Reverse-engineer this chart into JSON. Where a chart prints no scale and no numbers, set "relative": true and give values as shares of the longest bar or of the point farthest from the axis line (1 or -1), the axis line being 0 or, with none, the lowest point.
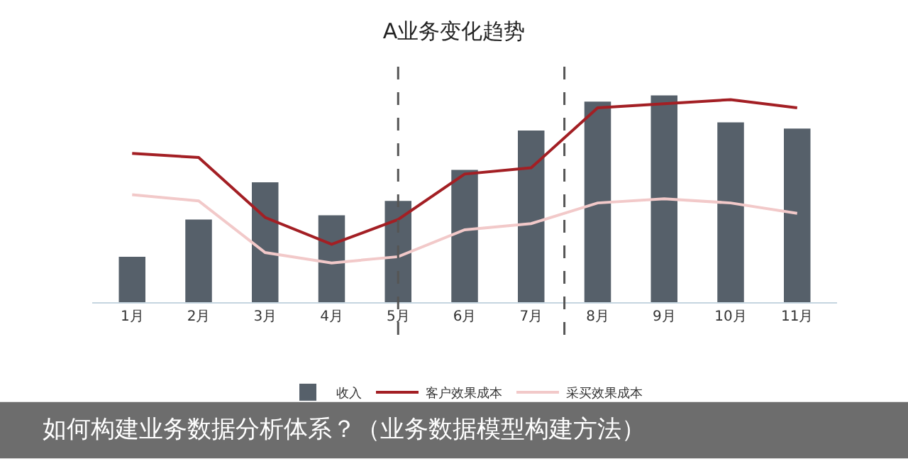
{
  "chart_data": {
    "type": "bar",
    "title": "A业务变化趋势",
    "relative": true,
    "categories": [
      "1月",
      "2月",
      "3月",
      "4月",
      "5月",
      "6月",
      "7月",
      "8月",
      "9月",
      "10月",
      "11月"
    ],
    "series": [
      {
        "name": "收入",
        "color": "#56606a",
        "values": [
          0.22,
          0.4,
          0.58,
          0.42,
          0.49,
          0.64,
          0.83,
          0.97,
          1.0,
          0.87,
          0.84
        ]
      },
      {
        "name": "客户效果成本",
        "type": "line",
        "color": "#a31f24",
        "values": [
          0.72,
          0.7,
          0.41,
          0.28,
          0.4,
          0.62,
          0.65,
          0.94,
          0.96,
          0.98,
          0.94
        ]
      },
      {
        "name": "采买效果成本",
        "type": "line",
        "color": "#f2c9c9",
        "values": [
          0.52,
          0.49,
          0.24,
          0.19,
          0.22,
          0.35,
          0.38,
          0.48,
          0.5,
          0.48,
          0.43
        ]
      }
    ],
    "ref_lines": [
      {
        "axis": "x",
        "value": "5月",
        "color": "#555555",
        "line_style": "dashed"
      }
    ],
    "annotations": [
      "如何构建业务数据分析体系？（业务数据模型构建方法）"
    ],
    "legend": "bottom",
    "grid": false,
    "marker": "none",
    "line_style": "solid"
  }
}
